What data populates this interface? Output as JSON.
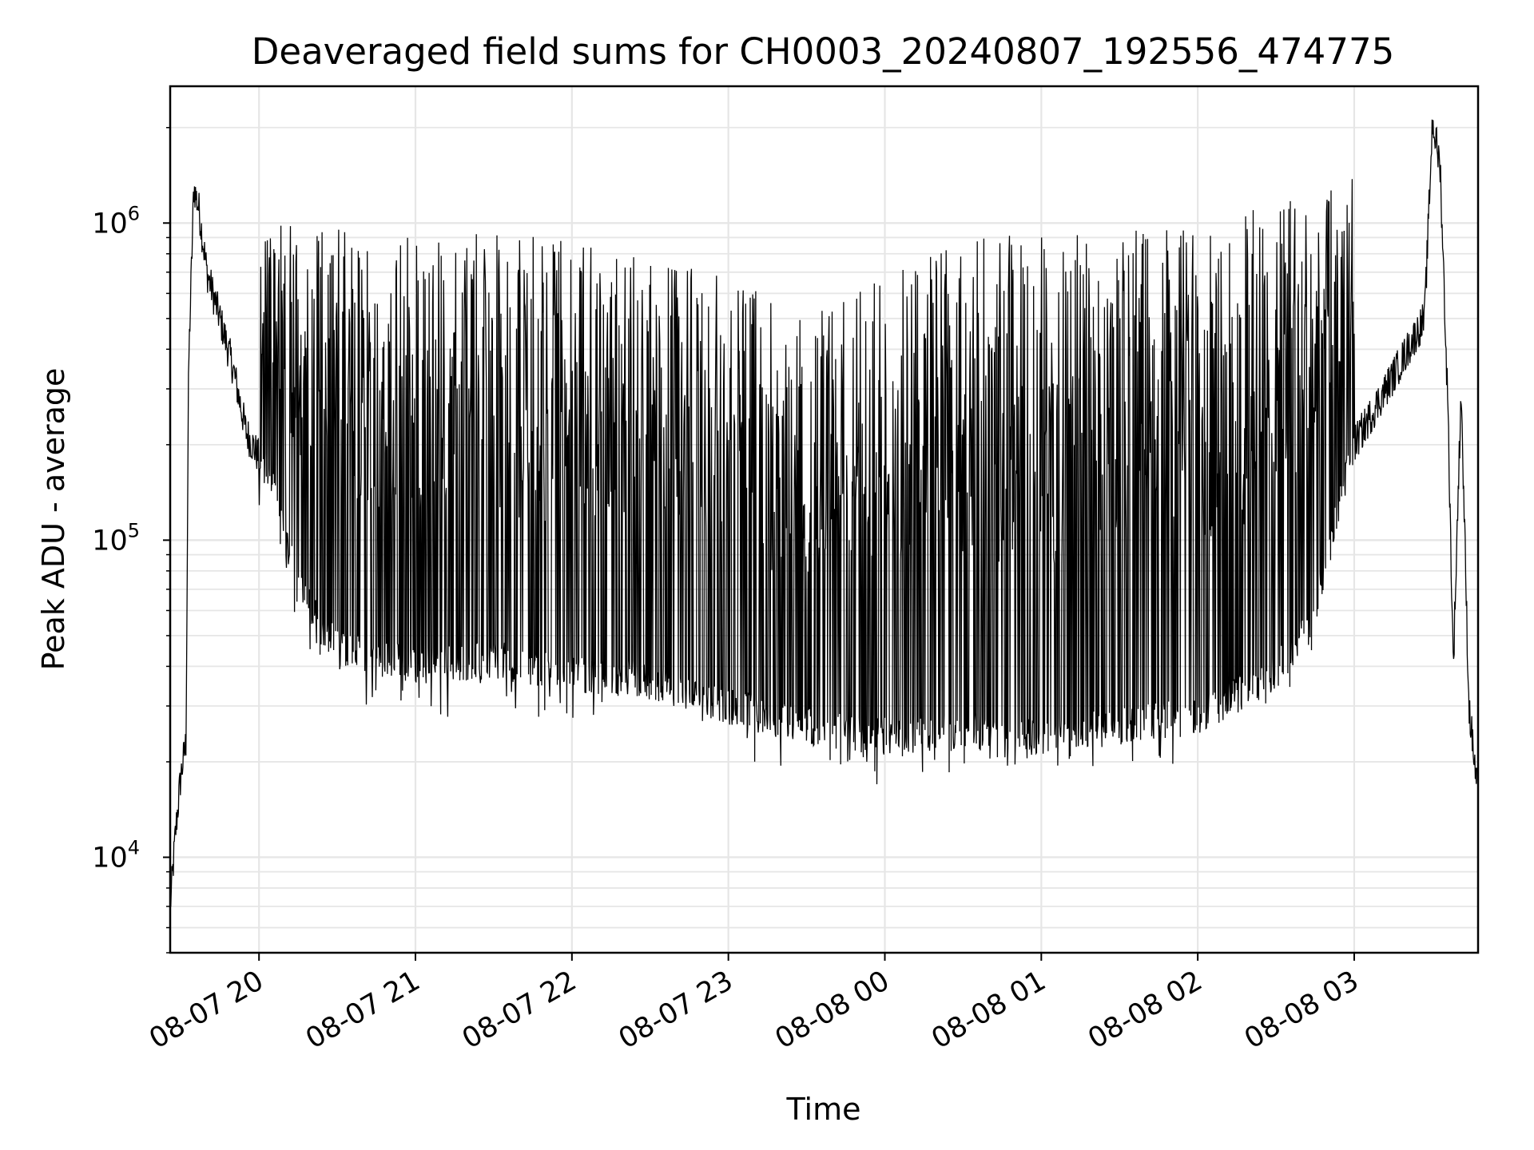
{
  "chart_data": {
    "type": "line",
    "title": "Deaveraged field sums for CH0003_20240807_192556_474775",
    "xlabel": "Time",
    "ylabel": "Peak ADU - average",
    "yscale": "log",
    "ylim": [
      5000,
      2700000
    ],
    "xlim": [
      "2024-08-07 19:25:56",
      "2024-08-08 03:47:30"
    ],
    "grid": true,
    "legend": "none",
    "line_color": "#000000",
    "grid_color": "#e6e6e6",
    "x_ticks": [
      {
        "value": "2024-08-07 20:00",
        "label": "08-07 20"
      },
      {
        "value": "2024-08-07 21:00",
        "label": "08-07 21"
      },
      {
        "value": "2024-08-07 22:00",
        "label": "08-07 22"
      },
      {
        "value": "2024-08-07 23:00",
        "label": "08-07 23"
      },
      {
        "value": "2024-08-08 00:00",
        "label": "08-08 00"
      },
      {
        "value": "2024-08-08 01:00",
        "label": "08-08 01"
      },
      {
        "value": "2024-08-08 02:00",
        "label": "08-08 02"
      },
      {
        "value": "2024-08-08 03:00",
        "label": "08-08 03"
      }
    ],
    "y_ticks": [
      {
        "value": 10000,
        "base": "10",
        "exp": "4"
      },
      {
        "value": 100000,
        "base": "10",
        "exp": "5"
      },
      {
        "value": 1000000,
        "base": "10",
        "exp": "6"
      }
    ],
    "series": [
      {
        "baseline": [
          {
            "x": "2024-08-07 19:26",
            "y": 7000
          },
          {
            "x": "2024-08-07 19:28",
            "y": 12000
          },
          {
            "x": "2024-08-07 19:30",
            "y": 18000
          },
          {
            "x": "2024-08-07 19:32",
            "y": 23000
          },
          {
            "x": "2024-08-07 19:33",
            "y": 350000
          },
          {
            "x": "2024-08-07 19:35",
            "y": 1300000
          },
          {
            "x": "2024-08-07 19:37",
            "y": 1100000
          },
          {
            "x": "2024-08-07 19:40",
            "y": 700000
          },
          {
            "x": "2024-08-07 19:45",
            "y": 500000
          },
          {
            "x": "2024-08-07 19:50",
            "y": 350000
          },
          {
            "x": "2024-08-07 19:55",
            "y": 220000
          },
          {
            "x": "2024-08-07 20:05",
            "y": 150000
          },
          {
            "x": "2024-08-07 20:15",
            "y": 70000
          },
          {
            "x": "2024-08-07 20:30",
            "y": 45000
          },
          {
            "x": "2024-08-07 21:00",
            "y": 40000
          },
          {
            "x": "2024-08-07 21:30",
            "y": 42000
          },
          {
            "x": "2024-08-07 22:00",
            "y": 38000
          },
          {
            "x": "2024-08-07 22:30",
            "y": 36000
          },
          {
            "x": "2024-08-07 23:00",
            "y": 30000
          },
          {
            "x": "2024-08-07 23:30",
            "y": 26000
          },
          {
            "x": "2024-08-08 00:00",
            "y": 24000
          },
          {
            "x": "2024-08-08 00:30",
            "y": 25000
          },
          {
            "x": "2024-08-08 01:00",
            "y": 24000
          },
          {
            "x": "2024-08-08 01:30",
            "y": 26000
          },
          {
            "x": "2024-08-08 02:00",
            "y": 28000
          },
          {
            "x": "2024-08-08 02:30",
            "y": 38000
          },
          {
            "x": "2024-08-08 02:45",
            "y": 60000
          },
          {
            "x": "2024-08-08 03:00",
            "y": 200000
          },
          {
            "x": "2024-08-08 03:15",
            "y": 330000
          },
          {
            "x": "2024-08-08 03:27",
            "y": 500000
          },
          {
            "x": "2024-08-08 03:30",
            "y": 2100000
          },
          {
            "x": "2024-08-08 03:33",
            "y": 1500000
          },
          {
            "x": "2024-08-08 03:36",
            "y": 250000
          },
          {
            "x": "2024-08-08 03:38",
            "y": 40000
          },
          {
            "x": "2024-08-08 03:41",
            "y": 300000
          },
          {
            "x": "2024-08-08 03:44",
            "y": 30000
          },
          {
            "x": "2024-08-08 03:47",
            "y": 17000
          }
        ],
        "spike_envelope": [
          {
            "x": "2024-08-07 20:00",
            "y": 1000000
          },
          {
            "x": "2024-08-07 21:00",
            "y": 950000
          },
          {
            "x": "2024-08-07 22:00",
            "y": 900000
          },
          {
            "x": "2024-08-07 23:00",
            "y": 700000
          },
          {
            "x": "2024-08-07 23:30",
            "y": 500000
          },
          {
            "x": "2024-08-08 00:00",
            "y": 750000
          },
          {
            "x": "2024-08-08 00:30",
            "y": 900000
          },
          {
            "x": "2024-08-08 01:00",
            "y": 950000
          },
          {
            "x": "2024-08-08 02:00",
            "y": 950000
          },
          {
            "x": "2024-08-08 02:45",
            "y": 1300000
          },
          {
            "x": "2024-08-08 03:00",
            "y": 1400000
          }
        ]
      }
    ]
  }
}
